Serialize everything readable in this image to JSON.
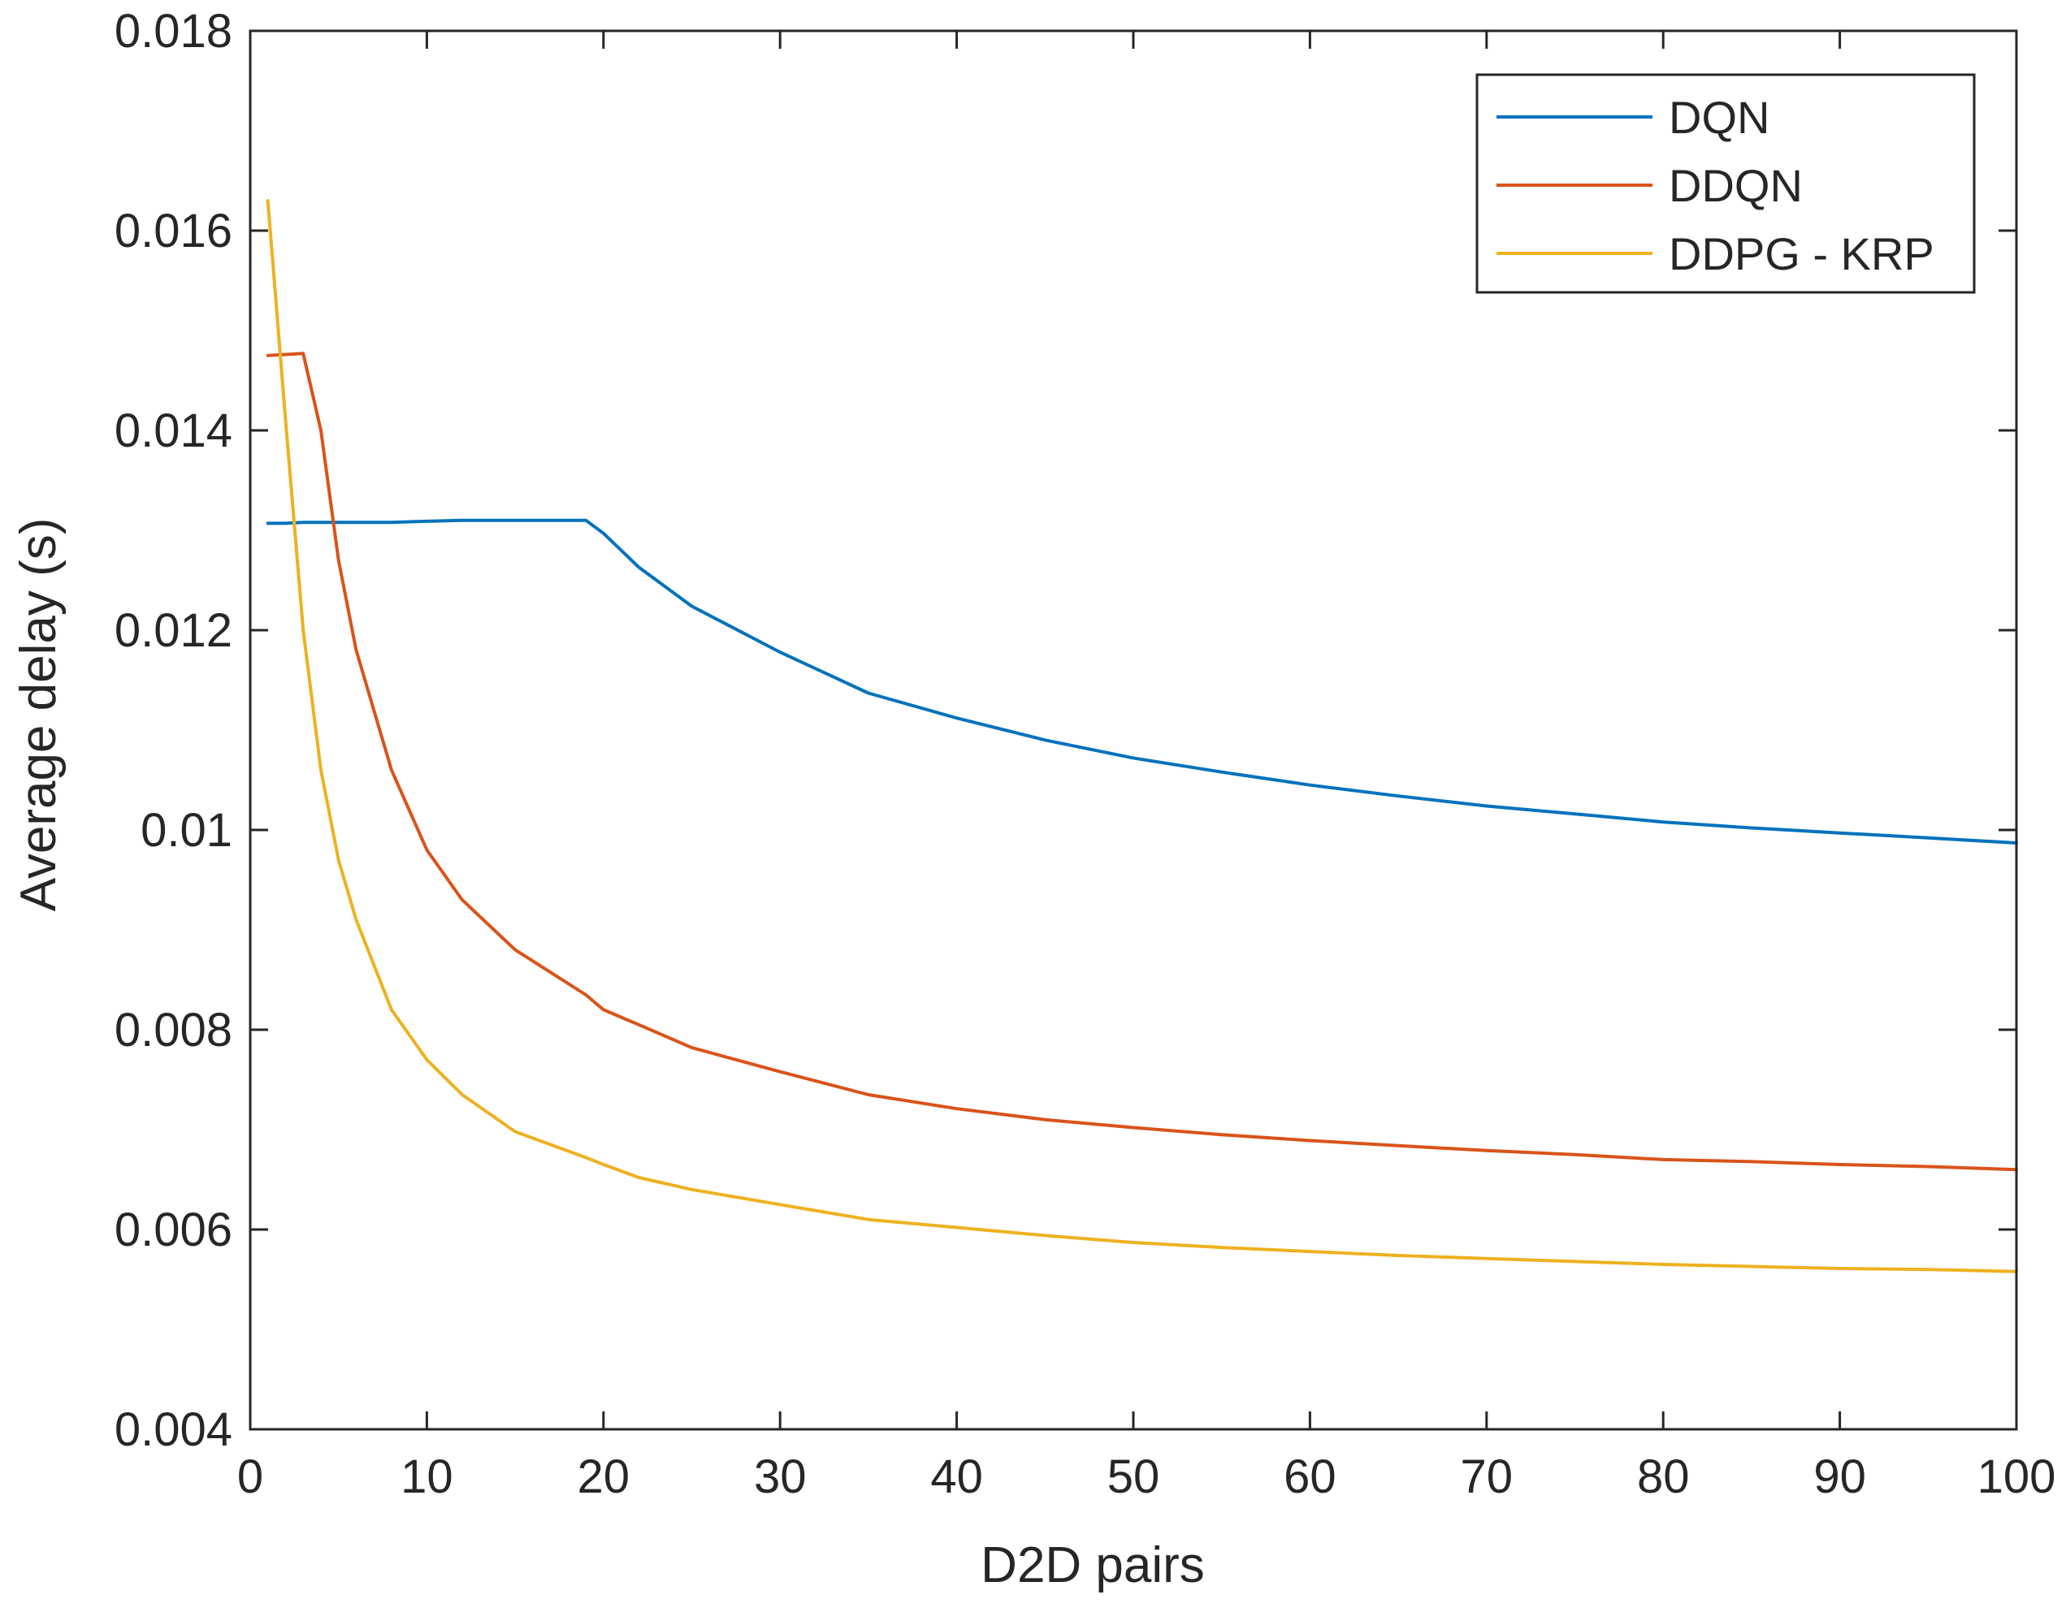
{
  "chart_data": {
    "type": "line",
    "title": "",
    "xlabel": "D2D pairs",
    "ylabel": "Average delay (s)",
    "xlim": [
      0,
      100
    ],
    "ylim": [
      0.004,
      0.018
    ],
    "xticks": [
      0,
      10,
      20,
      30,
      40,
      50,
      60,
      70,
      80,
      90,
      100
    ],
    "xtick_labels": [
      "0",
      "10",
      "20",
      "30",
      "40",
      "50",
      "60",
      "70",
      "80",
      "90",
      "100"
    ],
    "yticks": [
      0.004,
      0.006,
      0.008,
      0.01,
      0.012,
      0.014,
      0.016,
      0.018
    ],
    "ytick_labels": [
      "0.004",
      "0.006",
      "0.008",
      "0.01",
      "0.012",
      "0.014",
      "0.016",
      "0.018"
    ],
    "grid": false,
    "legend_position": "top-right",
    "x": [
      1,
      2,
      3,
      4,
      5,
      6,
      8,
      10,
      12,
      15,
      19,
      20,
      22,
      25,
      30,
      35,
      40,
      45,
      50,
      55,
      60,
      65,
      70,
      75,
      80,
      85,
      90,
      95,
      100
    ],
    "series": [
      {
        "name": "DQN",
        "color": "#0072BD",
        "values": [
          0.01307,
          0.01307,
          0.01308,
          0.01308,
          0.01308,
          0.01308,
          0.01308,
          0.01309,
          0.0131,
          0.0131,
          0.0131,
          0.01297,
          0.01263,
          0.01224,
          0.01178,
          0.01137,
          0.01112,
          0.0109,
          0.01072,
          0.01058,
          0.01045,
          0.01034,
          0.01024,
          0.01016,
          0.01008,
          0.01002,
          0.00997,
          0.00992,
          0.00987
        ]
      },
      {
        "name": "DDQN",
        "color": "#D95319",
        "values": [
          0.01475,
          0.01476,
          0.01477,
          0.014,
          0.0127,
          0.0118,
          0.0106,
          0.0098,
          0.0093,
          0.0088,
          0.00835,
          0.0082,
          0.00805,
          0.00782,
          0.00758,
          0.00735,
          0.00721,
          0.0071,
          0.00702,
          0.00695,
          0.00689,
          0.00684,
          0.00679,
          0.00675,
          0.0067,
          0.00668,
          0.00665,
          0.00663,
          0.0066
        ]
      },
      {
        "name": "DDPG - KRP",
        "color": "#EDB120",
        "values": [
          0.0163,
          0.0141,
          0.012,
          0.0106,
          0.0097,
          0.0091,
          0.0082,
          0.0077,
          0.00735,
          0.00698,
          0.00672,
          0.00665,
          0.00652,
          0.0064,
          0.00625,
          0.0061,
          0.00602,
          0.00594,
          0.00587,
          0.00582,
          0.00578,
          0.00574,
          0.00571,
          0.00568,
          0.00565,
          0.00563,
          0.00561,
          0.0056,
          0.00558
        ]
      }
    ]
  }
}
